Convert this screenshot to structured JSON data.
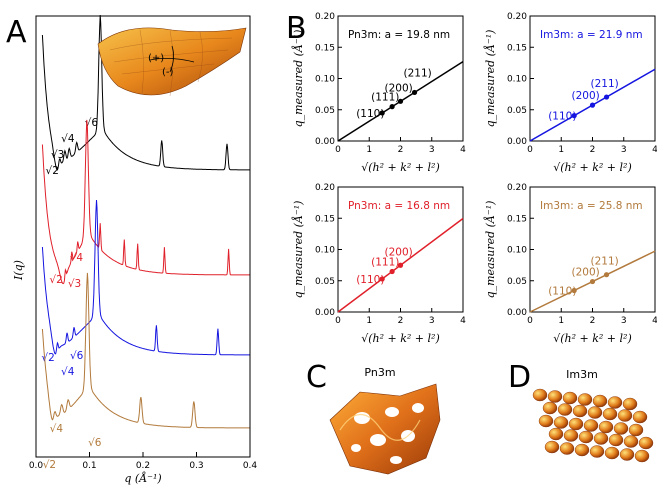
{
  "panel_labels": {
    "A": "A",
    "B": "B",
    "C": "C",
    "D": "D"
  },
  "structure_labels": {
    "C": "Pn3m",
    "D": "Im3m"
  },
  "saddle_labels": {
    "plus": "(+)",
    "minus": "(-)"
  },
  "colors": {
    "black": "#000000",
    "red": "#e0202a",
    "blue": "#1515e0",
    "brown": "#b27a3c",
    "surface": "#e88a1e"
  },
  "chart_data": [
    {
      "id": "A",
      "type": "line",
      "xlabel": "q (Å⁻¹)",
      "ylabel": "I(q)",
      "xlim": [
        0.0,
        0.4
      ],
      "xticks": [
        "0.0",
        "0.1",
        "0.2",
        "0.3",
        "0.4"
      ],
      "series": [
        {
          "color": "#000000",
          "peaks": [
            {
              "q": 0.044,
              "label": "√2"
            },
            {
              "q": 0.054,
              "label": "√3"
            },
            {
              "q": 0.062,
              "label": "√4"
            },
            {
              "q": 0.076,
              "label": "√6"
            },
            {
              "q": 0.12
            },
            {
              "q": 0.235
            },
            {
              "q": 0.357
            }
          ]
        },
        {
          "color": "#e0202a",
          "peaks": [
            {
              "q": 0.055,
              "label": "√2"
            },
            {
              "q": 0.067,
              "label": "√3"
            },
            {
              "q": 0.078,
              "label": "√4"
            },
            {
              "q": 0.095
            },
            {
              "q": 0.12
            },
            {
              "q": 0.165
            },
            {
              "q": 0.19
            },
            {
              "q": 0.24
            },
            {
              "q": 0.36
            }
          ]
        },
        {
          "color": "#1515e0",
          "peaks": [
            {
              "q": 0.04,
              "label": "√2"
            },
            {
              "q": 0.058,
              "label": "√4"
            },
            {
              "q": 0.071,
              "label": "√6"
            },
            {
              "q": 0.113
            },
            {
              "q": 0.225
            },
            {
              "q": 0.34
            }
          ]
        },
        {
          "color": "#b27a3c",
          "peaks": [
            {
              "q": 0.035,
              "label": "√2"
            },
            {
              "q": 0.048,
              "label": "√4"
            },
            {
              "q": 0.06,
              "label": "√6"
            },
            {
              "q": 0.096
            },
            {
              "q": 0.196
            },
            {
              "q": 0.295
            }
          ]
        }
      ]
    },
    {
      "id": "B1",
      "type": "scatter",
      "title": "Pn3m:  a = 19.8 nm",
      "color": "#000000",
      "xlabel": "√(h² + k² + l²)",
      "ylabel": "q_measured (Å⁻¹)",
      "xlim": [
        0,
        4
      ],
      "ylim": [
        0,
        0.2
      ],
      "xticks": [
        "0",
        "1",
        "2",
        "3",
        "4"
      ],
      "yticks": [
        "0.00",
        "0.05",
        "0.10",
        "0.15",
        "0.20"
      ],
      "points": [
        {
          "x": 1.414,
          "y": 0.0449,
          "label": "(110)"
        },
        {
          "x": 1.732,
          "y": 0.055,
          "label": "(111)"
        },
        {
          "x": 2.0,
          "y": 0.0635,
          "label": "(200)"
        },
        {
          "x": 2.449,
          "y": 0.0777,
          "label": "(211)"
        }
      ],
      "fit_slope": 0.03173
    },
    {
      "id": "B2",
      "type": "scatter",
      "title": "Im3m:  a = 21.9 nm",
      "color": "#1515e0",
      "xlabel": "√(h² + k² + l²)",
      "ylabel": "q_measured (Å⁻¹)",
      "xlim": [
        0,
        4
      ],
      "ylim": [
        0,
        0.2
      ],
      "xticks": [
        "0",
        "1",
        "2",
        "3",
        "4"
      ],
      "yticks": [
        "0.00",
        "0.05",
        "0.10",
        "0.15",
        "0.20"
      ],
      "points": [
        {
          "x": 1.414,
          "y": 0.0406,
          "label": "(110)"
        },
        {
          "x": 2.0,
          "y": 0.0574,
          "label": "(200)"
        },
        {
          "x": 2.449,
          "y": 0.0703,
          "label": "(211)"
        }
      ],
      "fit_slope": 0.02869
    },
    {
      "id": "B3",
      "type": "scatter",
      "title": "Pn3m:  a = 16.8 nm",
      "color": "#e0202a",
      "xlabel": "√(h² + k² + l²)",
      "ylabel": "q_measured (Å⁻¹)",
      "xlim": [
        0,
        4
      ],
      "ylim": [
        0,
        0.2
      ],
      "xticks": [
        "0",
        "1",
        "2",
        "3",
        "4"
      ],
      "yticks": [
        "0.00",
        "0.05",
        "0.10",
        "0.15",
        "0.20"
      ],
      "points": [
        {
          "x": 1.414,
          "y": 0.0529,
          "label": "(110)"
        },
        {
          "x": 1.732,
          "y": 0.0648,
          "label": "(111)"
        },
        {
          "x": 2.0,
          "y": 0.0748,
          "label": "(200)"
        }
      ],
      "fit_slope": 0.0374
    },
    {
      "id": "B4",
      "type": "scatter",
      "title": "Im3m:  a = 25.8 nm",
      "color": "#b27a3c",
      "xlabel": "√(h² + k² + l²)",
      "ylabel": "q_measured (Å⁻¹)",
      "xlim": [
        0,
        4
      ],
      "ylim": [
        0,
        0.2
      ],
      "xticks": [
        "0",
        "1",
        "2",
        "3",
        "4"
      ],
      "yticks": [
        "0.00",
        "0.05",
        "0.10",
        "0.15",
        "0.20"
      ],
      "points": [
        {
          "x": 1.414,
          "y": 0.0344,
          "label": "(110)"
        },
        {
          "x": 2.0,
          "y": 0.0487,
          "label": "(200)"
        },
        {
          "x": 2.449,
          "y": 0.0597,
          "label": "(211)"
        }
      ],
      "fit_slope": 0.02435
    }
  ]
}
